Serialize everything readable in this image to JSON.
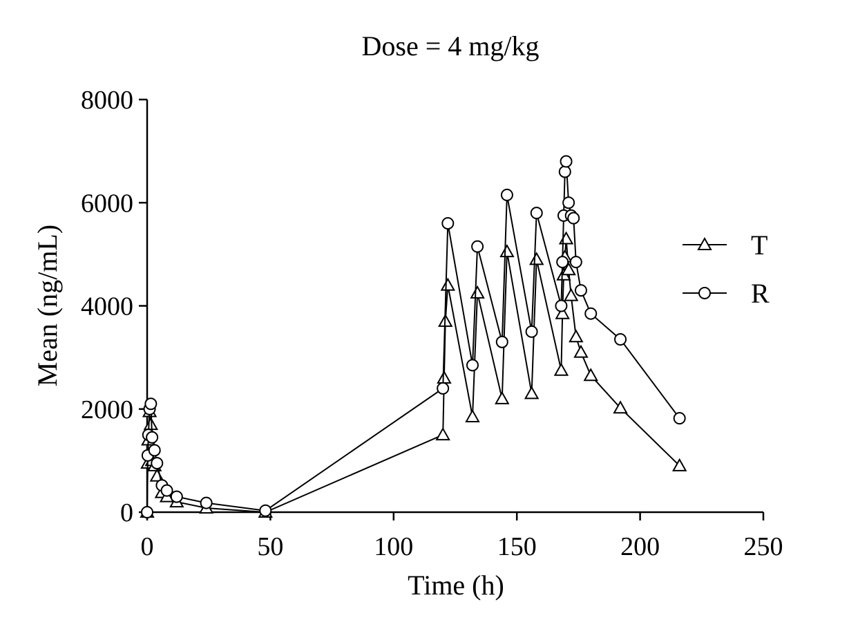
{
  "chart_data": {
    "type": "line",
    "title": "Dose = 4 mg/kg",
    "xlabel": "Time (h)",
    "ylabel": "Mean (ng/mL)",
    "xlim": [
      0,
      250
    ],
    "ylim": [
      0,
      8000
    ],
    "xticks": [
      0,
      50,
      100,
      150,
      200,
      250
    ],
    "yticks": [
      0,
      2000,
      4000,
      6000,
      8000
    ],
    "xtick_labels": [
      "0",
      "50",
      "100",
      "150",
      "200",
      "250"
    ],
    "ytick_labels": [
      "0",
      "2000",
      "4000",
      "6000",
      "8000"
    ],
    "grid": false,
    "legend": "right",
    "series": [
      {
        "name": "T",
        "marker": "triangle",
        "x": [
          0,
          0.25,
          0.5,
          1,
          1.5,
          2,
          3,
          4,
          6,
          8,
          12,
          24,
          48,
          120,
          120.5,
          121,
          122,
          132,
          134,
          144,
          146,
          156,
          158,
          168,
          168.5,
          169,
          169.5,
          170,
          171,
          172,
          174,
          176,
          180,
          192,
          216
        ],
        "y": [
          0,
          950,
          1400,
          1950,
          1700,
          1000,
          900,
          700,
          380,
          300,
          200,
          80,
          0,
          1500,
          2600,
          3700,
          4400,
          1850,
          4250,
          2200,
          5050,
          2300,
          4900,
          2750,
          3850,
          4600,
          4950,
          5300,
          4700,
          4200,
          3400,
          3100,
          2650,
          2020,
          900
        ]
      },
      {
        "name": "R",
        "marker": "circle",
        "x": [
          0,
          0.25,
          0.5,
          1,
          1.5,
          2,
          3,
          4,
          6,
          8,
          12,
          24,
          48,
          120,
          122,
          132,
          134,
          144,
          146,
          156,
          158,
          168,
          168.5,
          169,
          169.5,
          170,
          171,
          172,
          173,
          174,
          176,
          180,
          192,
          216
        ],
        "y": [
          0,
          1100,
          1500,
          2000,
          2100,
          1450,
          1200,
          950,
          520,
          420,
          300,
          180,
          30,
          2400,
          5600,
          2850,
          5150,
          3300,
          6150,
          3500,
          5800,
          4000,
          4850,
          5750,
          6600,
          6800,
          6000,
          5750,
          5700,
          4850,
          4300,
          3850,
          3350,
          1820
        ]
      }
    ]
  }
}
